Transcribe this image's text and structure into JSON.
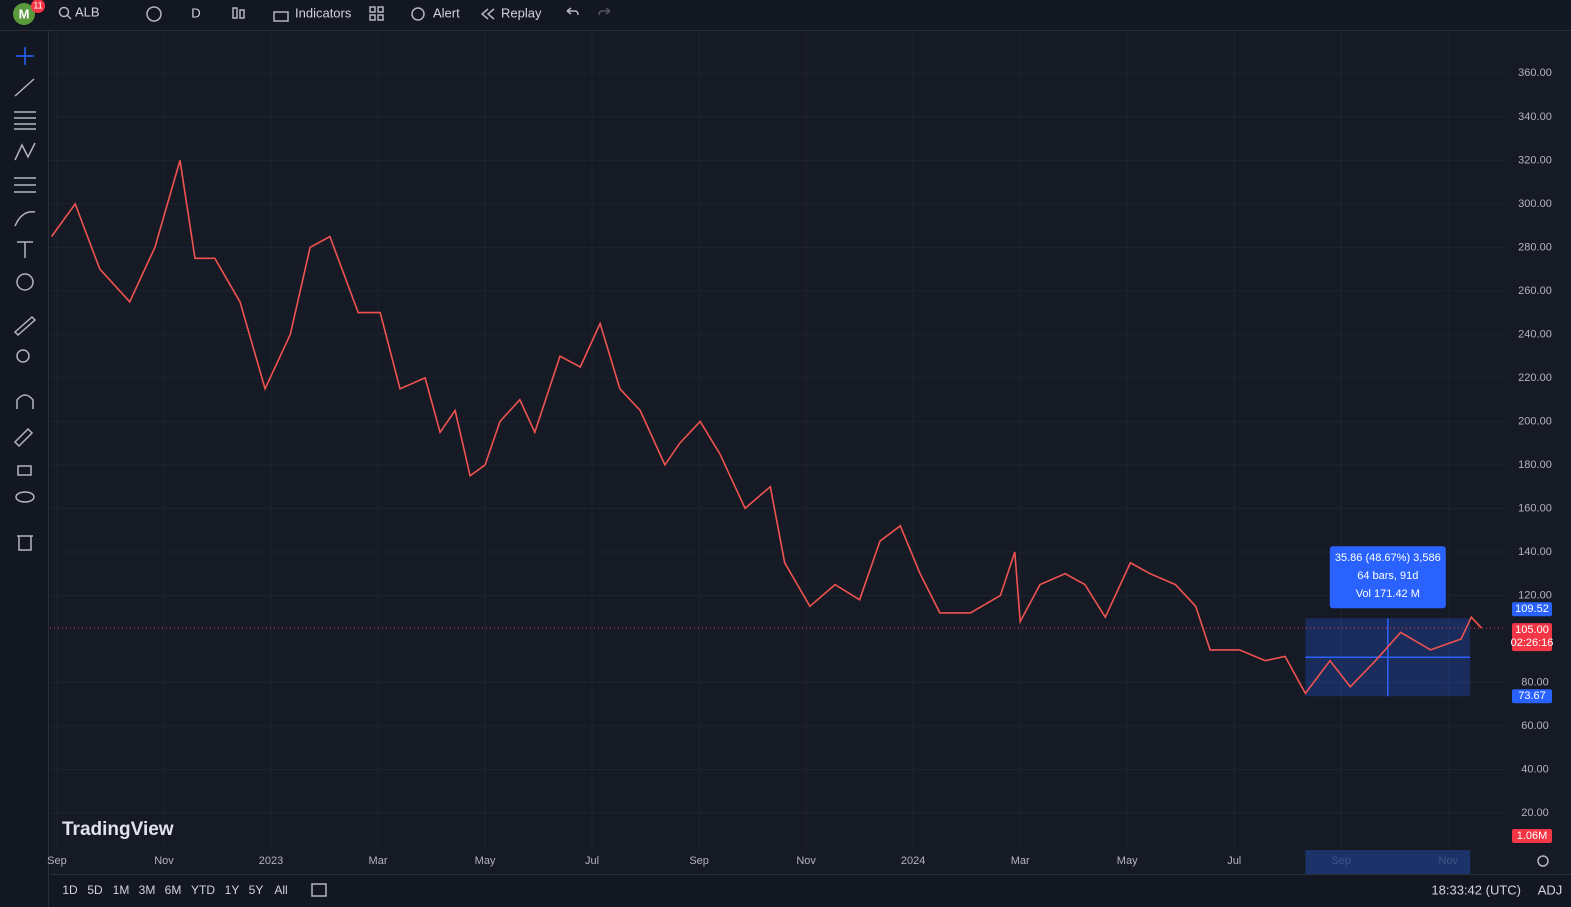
{
  "toolbar": {
    "avatar": "M",
    "badge": "11",
    "symbol": "ALB",
    "interval": "D",
    "indicators": "Indicators",
    "alert": "Alert",
    "replay": "Replay"
  },
  "chart_data": {
    "type": "line",
    "color": "#ef5350",
    "x": [
      -0.1,
      0.34,
      0.8,
      1.36,
      1.83,
      2.3,
      2.58,
      2.95,
      3.42,
      3.89,
      4.36,
      4.73,
      5.1,
      5.63,
      6.04,
      6.41,
      6.88,
      7.16,
      7.44,
      7.72,
      8.0,
      8.28,
      8.65,
      8.93,
      9.4,
      9.78,
      10.15,
      10.52,
      10.9,
      11.36,
      11.64,
      12.02,
      12.39,
      12.86,
      13.33,
      13.6,
      14.07,
      14.54,
      15.0,
      15.38,
      15.76,
      16.13,
      16.5,
      17.07,
      17.63,
      17.9,
      18.0,
      18.37,
      18.84,
      19.21,
      19.59,
      20.06,
      20.43,
      20.9,
      21.28,
      21.55,
      22.1,
      22.58,
      22.95,
      23.33,
      23.79,
      24.17,
      24.64,
      25.11,
      25.67,
      26.24,
      26.43,
      26.62
    ],
    "values": [
      285,
      300,
      270,
      255,
      280,
      320,
      275,
      275,
      255,
      215,
      240,
      280,
      285,
      250,
      250,
      215,
      220,
      195,
      205,
      175,
      180,
      200,
      210,
      195,
      230,
      225,
      245,
      215,
      205,
      180,
      190,
      200,
      185,
      160,
      170,
      135,
      115,
      125,
      118,
      145,
      152,
      130,
      112,
      112,
      120,
      140,
      108,
      125,
      130,
      125,
      110,
      135,
      130,
      125,
      115,
      95,
      95,
      90,
      92,
      75,
      90,
      78,
      90,
      103,
      95,
      100,
      110,
      105
    ],
    "xlim": [
      -0.13,
      27.06
    ],
    "ylim": [
      3,
      379
    ],
    "xticks": [
      {
        "value": 0,
        "label": "Sep"
      },
      {
        "value": 2,
        "label": "Nov"
      },
      {
        "value": 4,
        "label": "2023"
      },
      {
        "value": 6,
        "label": "Mar"
      },
      {
        "value": 8,
        "label": "May"
      },
      {
        "value": 10,
        "label": "Jul"
      },
      {
        "value": 12,
        "label": "Sep"
      },
      {
        "value": 14,
        "label": "Nov"
      },
      {
        "value": 16,
        "label": "2024"
      },
      {
        "value": 18,
        "label": "Mar"
      },
      {
        "value": 20,
        "label": "May"
      },
      {
        "value": 22,
        "label": "Jul"
      },
      {
        "value": 24,
        "label": "Sep"
      },
      {
        "value": 26,
        "label": "Nov"
      }
    ],
    "yticks": [
      {
        "value": 20,
        "label": "20.00"
      },
      {
        "value": 40,
        "label": "40.00"
      },
      {
        "value": 60,
        "label": "60.00"
      },
      {
        "value": 80,
        "label": "80.00"
      },
      {
        "value": 120,
        "label": "120.00"
      },
      {
        "value": 140,
        "label": "140.00"
      },
      {
        "value": 160,
        "label": "160.00"
      },
      {
        "value": 180,
        "label": "180.00"
      },
      {
        "value": 200,
        "label": "200.00"
      },
      {
        "value": 220,
        "label": "220.00"
      },
      {
        "value": 240,
        "label": "240.00"
      },
      {
        "value": 260,
        "label": "260.00"
      },
      {
        "value": 280,
        "label": "280.00"
      },
      {
        "value": 300,
        "label": "300.00"
      },
      {
        "value": 320,
        "label": "320.00"
      },
      {
        "value": 340,
        "label": "340.00"
      },
      {
        "value": 360,
        "label": "360.00"
      }
    ],
    "grid": true,
    "measure": {
      "x": [
        23.33,
        26.41
      ],
      "y": [
        73.67,
        109.52
      ],
      "labels": [
        "35.86 (48.67%) 3,586",
        "64 bars, 91d",
        "Vol 171.42 M"
      ]
    },
    "price_tags": [
      {
        "value": 109.52,
        "label": "109.52",
        "color": "#2962ff"
      },
      {
        "value": 105,
        "label": "105.00",
        "color": "#f23645"
      },
      {
        "value": 73.67,
        "label": "73.67",
        "color": "#2962ff"
      }
    ],
    "countdown": "02:26:16",
    "volume_tag": "1.06M",
    "watermark": "TradingView"
  },
  "bottom_bar": {
    "ranges": [
      "1D",
      "5D",
      "1M",
      "3M",
      "6M",
      "YTD",
      "1Y",
      "5Y",
      "All"
    ],
    "clock": "18:33:42 (UTC)",
    "adj": "ADJ"
  }
}
